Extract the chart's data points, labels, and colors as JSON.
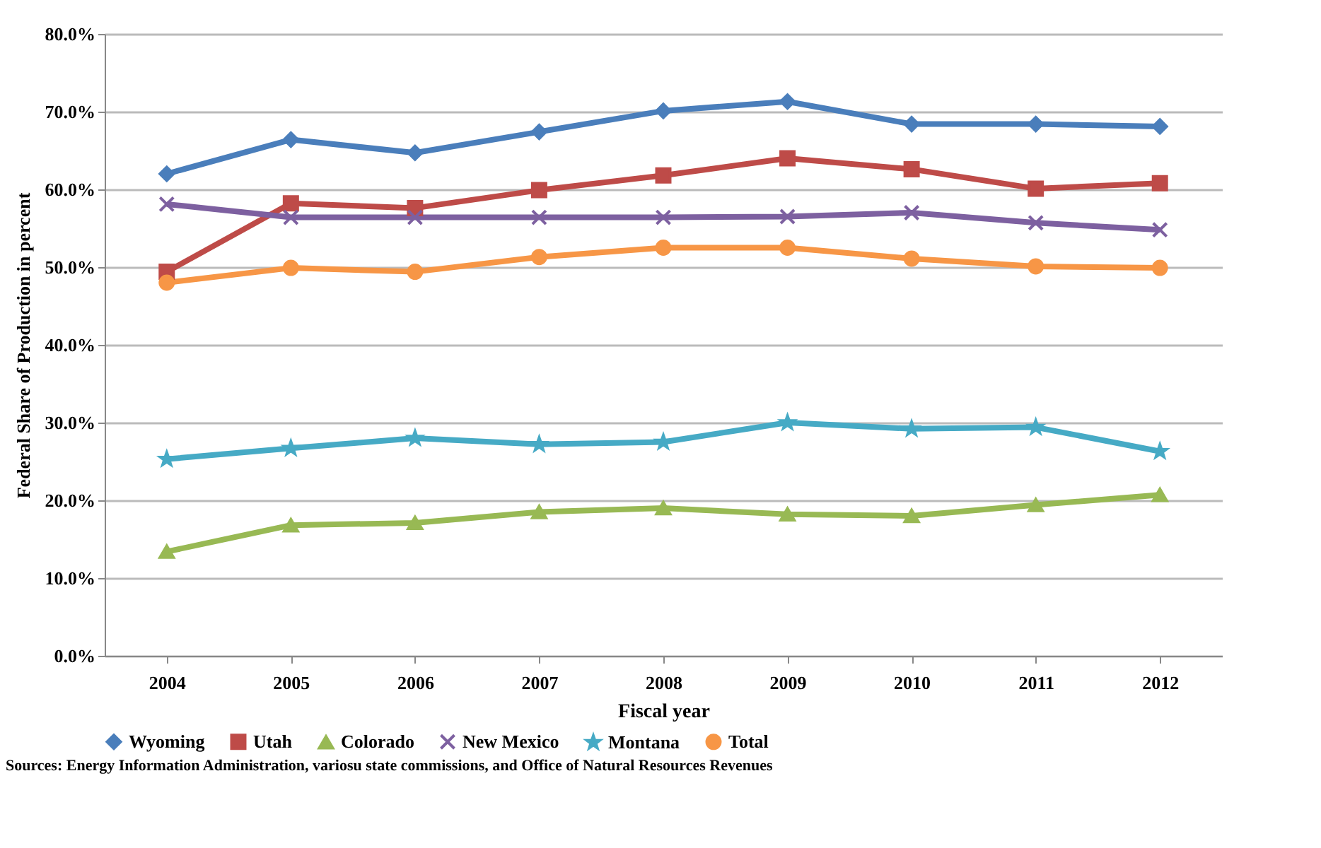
{
  "chart_data": {
    "type": "line",
    "xlabel": "Fiscal year",
    "ylabel": "Federal Share of Production in percent",
    "categories": [
      "2004",
      "2005",
      "2006",
      "2007",
      "2008",
      "2009",
      "2010",
      "2011",
      "2012"
    ],
    "series": [
      {
        "name": "Wyoming",
        "color": "#4a7ebb",
        "marker": "diamond",
        "values": [
          62.0,
          66.4,
          64.7,
          67.4,
          70.1,
          71.3,
          68.4,
          68.4,
          68.1
        ]
      },
      {
        "name": "Utah",
        "color": "#be4b48",
        "marker": "square",
        "values": [
          49.4,
          58.2,
          57.6,
          59.9,
          61.8,
          64.0,
          62.6,
          60.1,
          60.8
        ]
      },
      {
        "name": "Colorado",
        "color": "#98b954",
        "marker": "triangle",
        "values": [
          13.4,
          16.8,
          17.1,
          18.5,
          19.0,
          18.2,
          18.0,
          19.4,
          20.7
        ]
      },
      {
        "name": "New Mexico",
        "color": "#7d60a0",
        "marker": "cross",
        "values": [
          58.1,
          56.4,
          56.4,
          56.4,
          56.4,
          56.5,
          57.0,
          55.7,
          54.8
        ]
      },
      {
        "name": "Montana",
        "color": "#46aac5",
        "marker": "star",
        "values": [
          25.3,
          26.7,
          28.0,
          27.2,
          27.5,
          30.0,
          29.2,
          29.4,
          26.3
        ]
      },
      {
        "name": "Total",
        "color": "#f79646",
        "marker": "circle",
        "values": [
          48.0,
          49.9,
          49.4,
          51.3,
          52.5,
          52.5,
          51.1,
          50.1,
          49.9
        ]
      }
    ],
    "ylim": [
      0,
      80
    ],
    "yticks": [
      {
        "value": 0,
        "label": "0.0%"
      },
      {
        "value": 10,
        "label": "10.0%"
      },
      {
        "value": 20,
        "label": "20.0%"
      },
      {
        "value": 30,
        "label": "30.0%"
      },
      {
        "value": 40,
        "label": "40.0%"
      },
      {
        "value": 50,
        "label": "50.0%"
      },
      {
        "value": 60,
        "label": "60.0%"
      },
      {
        "value": 70,
        "label": "70.0%"
      },
      {
        "value": 80,
        "label": "80.0%"
      }
    ],
    "grid": "y",
    "legend": "bottom",
    "annotations": [
      "Sources: Energy Information Administration, variosu state commissions, and Office of Natural Resources Revenues"
    ]
  }
}
